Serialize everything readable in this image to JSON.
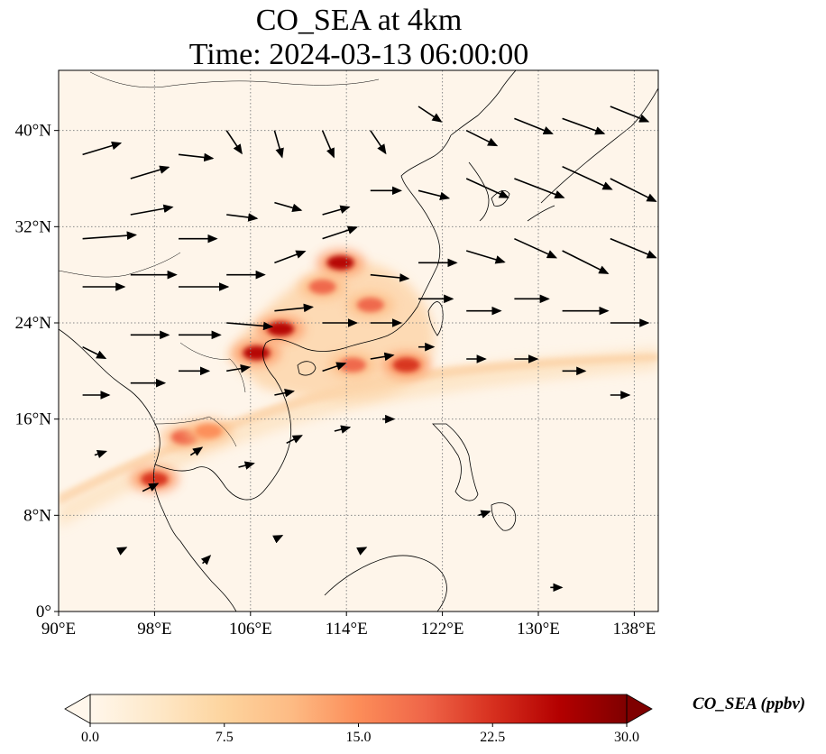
{
  "title": {
    "line1": "CO_SEA at 4km",
    "line2": "Time: 2024-03-13 06:00:00"
  },
  "map": {
    "lon_range": [
      90,
      140
    ],
    "lat_range": [
      0,
      45
    ],
    "lon_ticks": [
      {
        "value": 90,
        "label": "90°E"
      },
      {
        "value": 98,
        "label": "98°E"
      },
      {
        "value": 106,
        "label": "106°E"
      },
      {
        "value": 114,
        "label": "114°E"
      },
      {
        "value": 122,
        "label": "122°E"
      },
      {
        "value": 130,
        "label": "130°E"
      },
      {
        "value": 138,
        "label": "138°E"
      }
    ],
    "lat_ticks": [
      {
        "value": 0,
        "label": "0°"
      },
      {
        "value": 8,
        "label": "8°N"
      },
      {
        "value": 16,
        "label": "16°N"
      },
      {
        "value": 24,
        "label": "24°N"
      },
      {
        "value": 32,
        "label": "32°N"
      },
      {
        "value": 40,
        "label": "40°N"
      }
    ],
    "gridlines": true
  },
  "colorbar": {
    "title": "CO_SEA (ppbv)",
    "min": 0.0,
    "max": 30.0,
    "ticks": [
      "0.0",
      "7.5",
      "15.0",
      "22.5",
      "30.0"
    ],
    "colormap": "OrRd",
    "colors": [
      "#fff7ec",
      "#fee8c8",
      "#fdd49e",
      "#fdbb84",
      "#fc8d59",
      "#ef6548",
      "#d7301f",
      "#b30000",
      "#7f0000"
    ],
    "extend": "both"
  },
  "chart_data": {
    "type": "heatmap",
    "title": "CO_SEA at 4km",
    "subtitle": "Time: 2024-03-13 06:00:00",
    "variable": "CO_SEA",
    "units": "ppbv",
    "xlim": [
      90,
      140
    ],
    "ylim": [
      0,
      45
    ],
    "hotspots": [
      {
        "lon": 113.5,
        "lat": 29.0,
        "value": 27
      },
      {
        "lon": 108.5,
        "lat": 23.5,
        "value": 25
      },
      {
        "lon": 106.5,
        "lat": 21.5,
        "value": 26
      },
      {
        "lon": 112.0,
        "lat": 27.0,
        "value": 18
      },
      {
        "lon": 116.0,
        "lat": 25.5,
        "value": 17
      },
      {
        "lon": 119.0,
        "lat": 20.5,
        "value": 22
      },
      {
        "lon": 114.5,
        "lat": 20.5,
        "value": 18
      },
      {
        "lon": 98.0,
        "lat": 11.0,
        "value": 22
      },
      {
        "lon": 100.5,
        "lat": 14.5,
        "value": 20
      },
      {
        "lon": 102.5,
        "lat": 15.0,
        "value": 16
      }
    ],
    "wind_vectors": [
      {
        "lon": 92,
        "lat": 38,
        "u": 1.0,
        "v": 0.3
      },
      {
        "lon": 96,
        "lat": 36,
        "u": 1.0,
        "v": 0.3
      },
      {
        "lon": 100,
        "lat": 38,
        "u": 0.9,
        "v": -0.1
      },
      {
        "lon": 104,
        "lat": 40,
        "u": 0.4,
        "v": -0.6
      },
      {
        "lon": 108,
        "lat": 40,
        "u": 0.2,
        "v": -0.7
      },
      {
        "lon": 112,
        "lat": 40,
        "u": 0.3,
        "v": -0.7
      },
      {
        "lon": 116,
        "lat": 40,
        "u": 0.4,
        "v": -0.6
      },
      {
        "lon": 120,
        "lat": 42,
        "u": 0.6,
        "v": -0.4
      },
      {
        "lon": 124,
        "lat": 40,
        "u": 0.8,
        "v": -0.4
      },
      {
        "lon": 128,
        "lat": 41,
        "u": 1.0,
        "v": -0.4
      },
      {
        "lon": 132,
        "lat": 41,
        "u": 1.1,
        "v": -0.4
      },
      {
        "lon": 136,
        "lat": 42,
        "u": 1.0,
        "v": -0.4
      },
      {
        "lon": 92,
        "lat": 31,
        "u": 1.4,
        "v": 0.1
      },
      {
        "lon": 96,
        "lat": 33,
        "u": 1.1,
        "v": 0.2
      },
      {
        "lon": 100,
        "lat": 31,
        "u": 1.0,
        "v": 0.0
      },
      {
        "lon": 104,
        "lat": 33,
        "u": 0.8,
        "v": -0.1
      },
      {
        "lon": 108,
        "lat": 34,
        "u": 0.7,
        "v": -0.2
      },
      {
        "lon": 112,
        "lat": 33,
        "u": 0.7,
        "v": 0.2
      },
      {
        "lon": 116,
        "lat": 35,
        "u": 0.8,
        "v": 0.0
      },
      {
        "lon": 120,
        "lat": 35,
        "u": 0.8,
        "v": -0.2
      },
      {
        "lon": 124,
        "lat": 36,
        "u": 1.1,
        "v": -0.5
      },
      {
        "lon": 128,
        "lat": 36,
        "u": 1.3,
        "v": -0.5
      },
      {
        "lon": 132,
        "lat": 37,
        "u": 1.3,
        "v": -0.6
      },
      {
        "lon": 136,
        "lat": 36,
        "u": 1.2,
        "v": -0.6
      },
      {
        "lon": 92,
        "lat": 27,
        "u": 1.1,
        "v": 0.0
      },
      {
        "lon": 96,
        "lat": 28,
        "u": 1.2,
        "v": 0.0
      },
      {
        "lon": 100,
        "lat": 27,
        "u": 1.3,
        "v": 0.0
      },
      {
        "lon": 104,
        "lat": 28,
        "u": 1.0,
        "v": 0.0
      },
      {
        "lon": 108,
        "lat": 29,
        "u": 0.8,
        "v": 0.3
      },
      {
        "lon": 112,
        "lat": 31,
        "u": 0.9,
        "v": 0.3
      },
      {
        "lon": 116,
        "lat": 28,
        "u": 1.0,
        "v": -0.1
      },
      {
        "lon": 120,
        "lat": 29,
        "u": 1.0,
        "v": 0.0
      },
      {
        "lon": 124,
        "lat": 30,
        "u": 1.0,
        "v": -0.3
      },
      {
        "lon": 128,
        "lat": 31,
        "u": 1.1,
        "v": -0.5
      },
      {
        "lon": 132,
        "lat": 30,
        "u": 1.2,
        "v": -0.6
      },
      {
        "lon": 136,
        "lat": 31,
        "u": 1.2,
        "v": -0.5
      },
      {
        "lon": 92,
        "lat": 22,
        "u": 0.6,
        "v": -0.3
      },
      {
        "lon": 96,
        "lat": 23,
        "u": 1.0,
        "v": 0.0
      },
      {
        "lon": 100,
        "lat": 23,
        "u": 1.1,
        "v": 0.0
      },
      {
        "lon": 104,
        "lat": 24,
        "u": 1.2,
        "v": -0.1
      },
      {
        "lon": 108,
        "lat": 25,
        "u": 1.0,
        "v": 0.1
      },
      {
        "lon": 112,
        "lat": 24,
        "u": 0.9,
        "v": 0.0
      },
      {
        "lon": 116,
        "lat": 24,
        "u": 0.8,
        "v": 0.0
      },
      {
        "lon": 120,
        "lat": 26,
        "u": 0.9,
        "v": 0.0
      },
      {
        "lon": 124,
        "lat": 25,
        "u": 0.9,
        "v": 0.0
      },
      {
        "lon": 128,
        "lat": 26,
        "u": 0.9,
        "v": 0.0
      },
      {
        "lon": 132,
        "lat": 25,
        "u": 1.2,
        "v": 0.0
      },
      {
        "lon": 136,
        "lat": 24,
        "u": 1.0,
        "v": 0.0
      },
      {
        "lon": 92,
        "lat": 18,
        "u": 0.7,
        "v": 0.0
      },
      {
        "lon": 96,
        "lat": 19,
        "u": 0.9,
        "v": 0.0
      },
      {
        "lon": 100,
        "lat": 20,
        "u": 0.8,
        "v": 0.0
      },
      {
        "lon": 104,
        "lat": 20,
        "u": 0.6,
        "v": 0.1
      },
      {
        "lon": 108,
        "lat": 18,
        "u": 0.5,
        "v": 0.1
      },
      {
        "lon": 112,
        "lat": 20,
        "u": 0.6,
        "v": 0.2
      },
      {
        "lon": 116,
        "lat": 21,
        "u": 0.6,
        "v": 0.1
      },
      {
        "lon": 120,
        "lat": 22,
        "u": 0.4,
        "v": 0.0
      },
      {
        "lon": 124,
        "lat": 21,
        "u": 0.5,
        "v": 0.0
      },
      {
        "lon": 128,
        "lat": 21,
        "u": 0.6,
        "v": 0.0
      },
      {
        "lon": 132,
        "lat": 20,
        "u": 0.6,
        "v": 0.0
      },
      {
        "lon": 136,
        "lat": 18,
        "u": 0.5,
        "v": 0.0
      },
      {
        "lon": 93,
        "lat": 13,
        "u": 0.3,
        "v": 0.1
      },
      {
        "lon": 97,
        "lat": 10,
        "u": 0.4,
        "v": 0.2
      },
      {
        "lon": 101,
        "lat": 13,
        "u": 0.3,
        "v": 0.2
      },
      {
        "lon": 105,
        "lat": 12,
        "u": 0.4,
        "v": 0.1
      },
      {
        "lon": 109,
        "lat": 14,
        "u": 0.4,
        "v": 0.2
      },
      {
        "lon": 113,
        "lat": 15,
        "u": 0.4,
        "v": 0.1
      },
      {
        "lon": 117,
        "lat": 16,
        "u": 0.3,
        "v": 0.0
      },
      {
        "lon": 125,
        "lat": 8,
        "u": 0.3,
        "v": 0.1
      },
      {
        "lon": 131,
        "lat": 2,
        "u": 0.3,
        "v": 0.0
      },
      {
        "lon": 95,
        "lat": 5,
        "u": 0.2,
        "v": 0.1
      },
      {
        "lon": 102,
        "lat": 4,
        "u": 0.2,
        "v": 0.2
      },
      {
        "lon": 108,
        "lat": 6,
        "u": 0.2,
        "v": 0.1
      },
      {
        "lon": 115,
        "lat": 5,
        "u": 0.2,
        "v": 0.1
      }
    ]
  }
}
